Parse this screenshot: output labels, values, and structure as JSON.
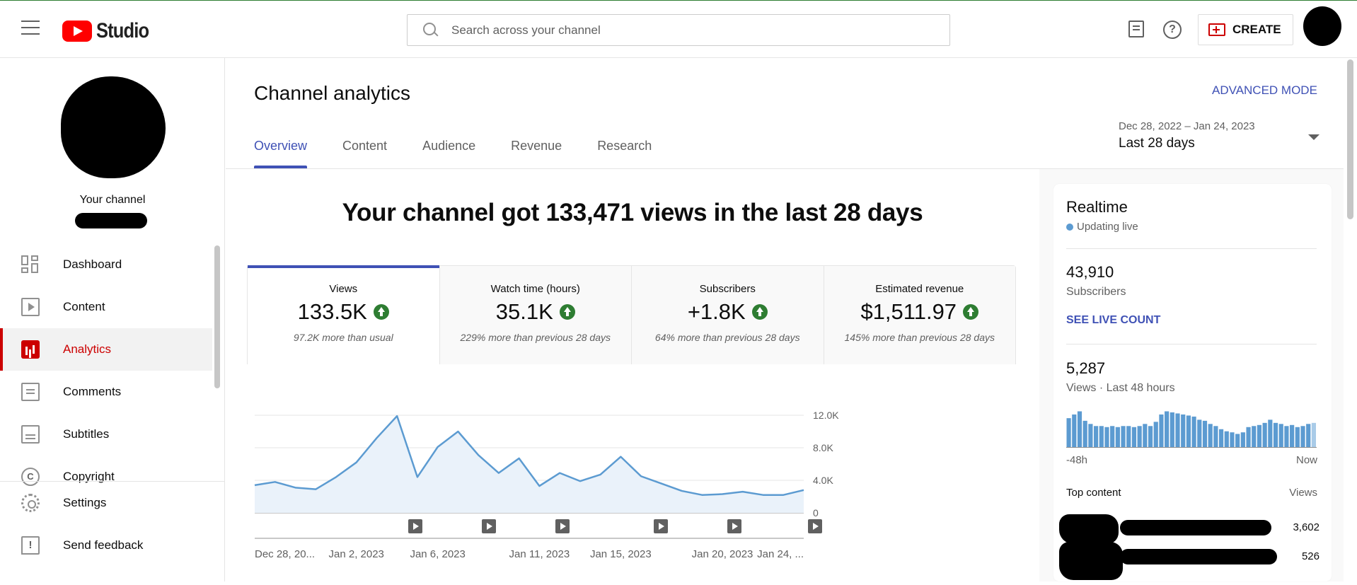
{
  "app": {
    "brand": "Studio"
  },
  "search": {
    "placeholder": "Search across your channel"
  },
  "header": {
    "create_label": "CREATE"
  },
  "sidebar": {
    "channel_label": "Your channel",
    "items": [
      {
        "label": "Dashboard",
        "icon": "dashboard-icon"
      },
      {
        "label": "Content",
        "icon": "content-icon"
      },
      {
        "label": "Analytics",
        "icon": "analytics-icon",
        "active": true
      },
      {
        "label": "Comments",
        "icon": "comments-icon"
      },
      {
        "label": "Subtitles",
        "icon": "subtitles-icon"
      },
      {
        "label": "Copyright",
        "icon": "copyright-icon"
      }
    ],
    "bottom_items": [
      {
        "label": "Settings",
        "icon": "gear-icon"
      },
      {
        "label": "Send feedback",
        "icon": "feedback-icon"
      }
    ]
  },
  "main": {
    "title": "Channel analytics",
    "advanced_mode": "ADVANCED MODE",
    "tabs": [
      {
        "label": "Overview",
        "active": true
      },
      {
        "label": "Content"
      },
      {
        "label": "Audience"
      },
      {
        "label": "Revenue"
      },
      {
        "label": "Research"
      }
    ],
    "date_range": {
      "dates": "Dec 28, 2022 – Jan 24, 2023",
      "label": "Last 28 days"
    },
    "headline": "Your channel got 133,471 views in the last 28 days",
    "metrics": [
      {
        "label": "Views",
        "value": "133.5K",
        "compare": "97.2K more than usual",
        "active": true
      },
      {
        "label": "Watch time (hours)",
        "value": "35.1K",
        "compare": "229% more than previous 28 days"
      },
      {
        "label": "Subscribers",
        "value": "+1.8K",
        "compare": "64% more than previous 28 days"
      },
      {
        "label": "Estimated revenue",
        "value": "$1,511.97",
        "compare": "145% more than previous 28 days"
      }
    ]
  },
  "chart_data": {
    "type": "area",
    "x": [
      "Dec 28",
      "Dec 29",
      "Dec 30",
      "Dec 31",
      "Jan 1",
      "Jan 2",
      "Jan 3",
      "Jan 4",
      "Jan 5",
      "Jan 6",
      "Jan 7",
      "Jan 8",
      "Jan 9",
      "Jan 10",
      "Jan 11",
      "Jan 12",
      "Jan 13",
      "Jan 14",
      "Jan 15",
      "Jan 16",
      "Jan 17",
      "Jan 18",
      "Jan 19",
      "Jan 20",
      "Jan 21",
      "Jan 22",
      "Jan 23",
      "Jan 24"
    ],
    "values": [
      3400,
      3800,
      3100,
      2900,
      4400,
      6200,
      9200,
      11900,
      4400,
      8100,
      10000,
      7100,
      4900,
      6700,
      3300,
      4900,
      3900,
      4700,
      6900,
      4500,
      3600,
      2700,
      2200,
      2300,
      2600,
      2200,
      2200,
      2800
    ],
    "ylim": [
      0,
      12000
    ],
    "yticks": [
      0,
      4000,
      8000,
      12000
    ],
    "ytick_labels": [
      "0",
      "4.0K",
      "8.0K",
      "12.0K"
    ],
    "xtick_labels": [
      {
        "x": "Dec 28",
        "label": "Dec 28, 20..."
      },
      {
        "x": "Jan 2",
        "label": "Jan 2, 2023"
      },
      {
        "x": "Jan 6",
        "label": "Jan 6, 2023"
      },
      {
        "x": "Jan 11",
        "label": "Jan 11, 2023"
      },
      {
        "x": "Jan 15",
        "label": "Jan 15, 2023"
      },
      {
        "x": "Jan 20",
        "label": "Jan 20, 2023"
      },
      {
        "x": "Jan 24",
        "label": "Jan 24, ..."
      }
    ],
    "video_markers": [
      "Jan 11",
      "Jan 14",
      "Jan 17",
      "Jan 21",
      "Jan 24",
      "Jan 24"
    ],
    "line_color": "#5c9bd1",
    "fill_color": "#eaf2fa",
    "grid": true
  },
  "realtime": {
    "title": "Realtime",
    "status": "Updating live",
    "subscribers_value": "43,910",
    "subscribers_label": "Subscribers",
    "see_live": "SEE LIVE COUNT",
    "views_value": "5,287",
    "views_label": "Views · Last 48 hours",
    "bars": [
      55,
      62,
      68,
      50,
      44,
      40,
      40,
      38,
      40,
      38,
      40,
      40,
      38,
      40,
      44,
      40,
      48,
      62,
      68,
      66,
      64,
      62,
      60,
      58,
      52,
      50,
      44,
      40,
      34,
      30,
      28,
      25,
      28,
      38,
      40,
      42,
      46,
      52,
      46,
      44,
      40,
      42,
      38,
      40,
      44,
      46
    ],
    "axis_left": "-48h",
    "axis_right": "Now",
    "top_content_label": "Top content",
    "top_content_views_label": "Views",
    "top_content": [
      {
        "views": "3,602"
      },
      {
        "views": "526"
      }
    ]
  }
}
